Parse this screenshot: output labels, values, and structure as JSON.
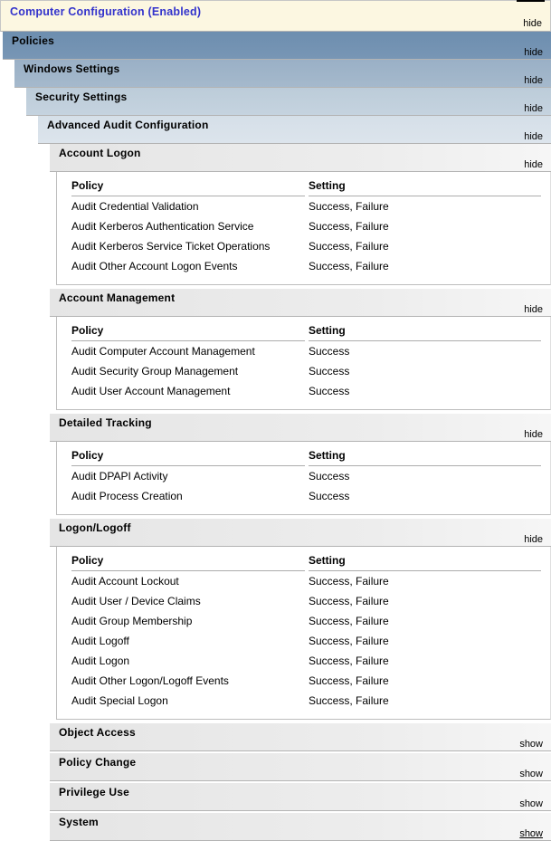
{
  "report": {
    "computer_configuration": {
      "title": "Computer Configuration (Enabled)",
      "toggle": "hide"
    },
    "levels": [
      {
        "title": "Policies",
        "toggle": "hide"
      },
      {
        "title": "Windows Settings",
        "toggle": "hide"
      },
      {
        "title": "Security Settings",
        "toggle": "hide"
      },
      {
        "title": "Advanced Audit Configuration",
        "toggle": "hide"
      }
    ],
    "table_headers": {
      "policy": "Policy",
      "setting": "Setting"
    },
    "sections": [
      {
        "title": "Account Logon",
        "toggle": "hide",
        "rows": [
          {
            "policy": "Audit Credential Validation",
            "setting": "Success, Failure"
          },
          {
            "policy": "Audit Kerberos Authentication Service",
            "setting": "Success, Failure"
          },
          {
            "policy": "Audit Kerberos Service Ticket Operations",
            "setting": "Success, Failure"
          },
          {
            "policy": "Audit Other Account Logon Events",
            "setting": "Success, Failure"
          }
        ]
      },
      {
        "title": "Account Management",
        "toggle": "hide",
        "rows": [
          {
            "policy": "Audit Computer Account Management",
            "setting": "Success"
          },
          {
            "policy": "Audit Security Group Management",
            "setting": "Success"
          },
          {
            "policy": "Audit User Account Management",
            "setting": "Success"
          }
        ]
      },
      {
        "title": "Detailed Tracking",
        "toggle": "hide",
        "rows": [
          {
            "policy": "Audit DPAPI Activity",
            "setting": "Success"
          },
          {
            "policy": "Audit Process Creation",
            "setting": "Success"
          }
        ]
      },
      {
        "title": "Logon/Logoff",
        "toggle": "hide",
        "rows": [
          {
            "policy": "Audit Account Lockout",
            "setting": "Success, Failure"
          },
          {
            "policy": "Audit User / Device Claims",
            "setting": "Success, Failure"
          },
          {
            "policy": "Audit Group Membership",
            "setting": "Success, Failure"
          },
          {
            "policy": "Audit Logoff",
            "setting": "Success, Failure"
          },
          {
            "policy": "Audit Logon",
            "setting": "Success, Failure"
          },
          {
            "policy": "Audit Other Logon/Logoff Events",
            "setting": "Success, Failure"
          },
          {
            "policy": "Audit Special Logon",
            "setting": "Success, Failure"
          }
        ]
      },
      {
        "title": "Object Access",
        "toggle": "show"
      },
      {
        "title": "Policy Change",
        "toggle": "show"
      },
      {
        "title": "Privilege Use",
        "toggle": "show"
      },
      {
        "title": "System",
        "toggle": "show"
      }
    ],
    "colors": {
      "title_blue": "#3333CC",
      "band_cream": "#FCF7E1",
      "band_blue_1": "#7191B1",
      "band_blue_2": "#A0B5C9",
      "band_blue_3": "#C1D0DC",
      "band_blue_4": "#D9E2EA",
      "section_gray": "#E9E9E9"
    }
  }
}
